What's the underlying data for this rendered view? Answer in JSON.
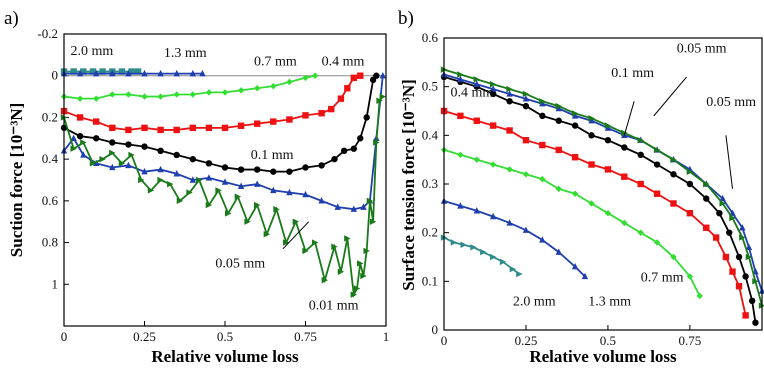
{
  "chart_data": [
    {
      "panel_label": "a)",
      "type": "line",
      "xlabel": "Relative volume loss",
      "ylabel": "Suction force [10⁻³N]",
      "xlim": [
        0,
        1
      ],
      "ylim": [
        -0.2,
        1.2
      ],
      "y_inverted": true,
      "xticks": [
        "0",
        "0.25",
        "0.5",
        "0.75",
        "1"
      ],
      "yticks": [
        "-0.2",
        "0",
        "0.2",
        "0.4",
        "0.6",
        "0.8",
        "1"
      ],
      "reference_line_y": 0,
      "series": [
        {
          "name": "2.0 mm",
          "color": "#2e8b8b",
          "marker": "square",
          "x": [
            0,
            0.03,
            0.06,
            0.09,
            0.12,
            0.15,
            0.18,
            0.21,
            0.23
          ],
          "y": [
            -0.02,
            -0.02,
            -0.02,
            -0.02,
            -0.02,
            -0.02,
            -0.02,
            -0.02,
            -0.02
          ]
        },
        {
          "name": "1.3 mm",
          "color": "#1f3fae",
          "marker": "triangle",
          "x": [
            0,
            0.05,
            0.1,
            0.15,
            0.2,
            0.25,
            0.3,
            0.35,
            0.4,
            0.43
          ],
          "y": [
            -0.01,
            -0.01,
            -0.01,
            -0.01,
            -0.01,
            -0.01,
            -0.01,
            -0.01,
            -0.01,
            -0.01
          ]
        },
        {
          "name": "0.7 mm",
          "color": "#33dd33",
          "marker": "diamond",
          "x": [
            0,
            0.05,
            0.1,
            0.15,
            0.2,
            0.25,
            0.3,
            0.35,
            0.4,
            0.45,
            0.5,
            0.55,
            0.6,
            0.65,
            0.7,
            0.75,
            0.78
          ],
          "y": [
            0.1,
            0.11,
            0.11,
            0.09,
            0.09,
            0.1,
            0.1,
            0.09,
            0.09,
            0.08,
            0.08,
            0.07,
            0.06,
            0.05,
            0.03,
            0.01,
            0.0
          ]
        },
        {
          "name": "0.4 mm",
          "color": "#ee1111",
          "marker": "square",
          "x": [
            0,
            0.05,
            0.1,
            0.15,
            0.2,
            0.25,
            0.3,
            0.35,
            0.4,
            0.45,
            0.5,
            0.55,
            0.6,
            0.65,
            0.7,
            0.75,
            0.8,
            0.83,
            0.86,
            0.88,
            0.9,
            0.92
          ],
          "y": [
            0.17,
            0.2,
            0.22,
            0.25,
            0.26,
            0.25,
            0.26,
            0.26,
            0.25,
            0.25,
            0.25,
            0.24,
            0.23,
            0.22,
            0.21,
            0.19,
            0.18,
            0.16,
            0.11,
            0.06,
            0.01,
            0.0
          ]
        },
        {
          "name": "0.1 mm",
          "color": "#000000",
          "marker": "circle",
          "x": [
            0,
            0.05,
            0.1,
            0.15,
            0.2,
            0.25,
            0.3,
            0.35,
            0.4,
            0.45,
            0.5,
            0.55,
            0.6,
            0.65,
            0.7,
            0.75,
            0.8,
            0.84,
            0.87,
            0.9,
            0.92,
            0.94,
            0.96,
            0.97
          ],
          "y": [
            0.25,
            0.29,
            0.3,
            0.32,
            0.33,
            0.34,
            0.36,
            0.38,
            0.4,
            0.42,
            0.44,
            0.45,
            0.45,
            0.46,
            0.46,
            0.44,
            0.43,
            0.4,
            0.36,
            0.35,
            0.3,
            0.2,
            0.02,
            0.0
          ]
        },
        {
          "name": "0.05 mm",
          "color": "#1f3fae",
          "marker": "triangle",
          "x": [
            0,
            0.03,
            0.06,
            0.1,
            0.15,
            0.2,
            0.25,
            0.3,
            0.35,
            0.4,
            0.45,
            0.5,
            0.55,
            0.6,
            0.65,
            0.7,
            0.75,
            0.8,
            0.85,
            0.9,
            0.93,
            0.95,
            0.97,
            0.99
          ],
          "y": [
            0.36,
            0.3,
            0.38,
            0.42,
            0.44,
            0.43,
            0.46,
            0.45,
            0.47,
            0.5,
            0.49,
            0.51,
            0.53,
            0.52,
            0.55,
            0.56,
            0.57,
            0.6,
            0.63,
            0.64,
            0.63,
            0.6,
            0.3,
            0.0
          ]
        },
        {
          "name": "0.01 mm",
          "color": "#1a7a1a",
          "marker": "arrow",
          "x": [
            0,
            0.03,
            0.06,
            0.09,
            0.12,
            0.15,
            0.18,
            0.21,
            0.24,
            0.27,
            0.3,
            0.33,
            0.36,
            0.39,
            0.42,
            0.45,
            0.48,
            0.51,
            0.54,
            0.57,
            0.6,
            0.63,
            0.66,
            0.69,
            0.72,
            0.75,
            0.78,
            0.81,
            0.84,
            0.86,
            0.88,
            0.9,
            0.91,
            0.92,
            0.93,
            0.94,
            0.95,
            0.96,
            0.97,
            0.98,
            0.99
          ],
          "y": [
            0.2,
            0.35,
            0.32,
            0.42,
            0.4,
            0.37,
            0.42,
            0.38,
            0.5,
            0.55,
            0.5,
            0.52,
            0.6,
            0.56,
            0.5,
            0.62,
            0.55,
            0.66,
            0.58,
            0.7,
            0.62,
            0.76,
            0.64,
            0.8,
            0.7,
            0.84,
            0.8,
            0.98,
            0.82,
            0.94,
            0.78,
            1.05,
            1.02,
            0.9,
            0.96,
            0.84,
            0.6,
            0.7,
            0.32,
            0.12,
            0.1
          ]
        }
      ],
      "annotations": [
        {
          "text": "2.0 mm",
          "x": 0.02,
          "y": -0.1
        },
        {
          "text": "1.3 mm",
          "x": 0.31,
          "y": -0.09
        },
        {
          "text": "0.7 mm",
          "x": 0.59,
          "y": -0.05
        },
        {
          "text": "0.4 mm",
          "x": 0.8,
          "y": -0.05
        },
        {
          "text": "0.1 mm",
          "x": 0.58,
          "y": 0.4
        },
        {
          "text": "0.05 mm",
          "x": 0.47,
          "y": 0.92
        },
        {
          "text": "0.01 mm",
          "x": 0.76,
          "y": 1.12
        }
      ]
    },
    {
      "panel_label": "b)",
      "type": "line",
      "xlabel": "Relative volume loss",
      "ylabel": "Surface tension force [10⁻³N]",
      "xlim": [
        0,
        0.97
      ],
      "ylim": [
        0,
        0.6
      ],
      "xticks": [
        "0",
        "0.25",
        "0.5",
        "0.75"
      ],
      "yticks": [
        "0",
        "0.1",
        "0.2",
        "0.3",
        "0.4",
        "0.5",
        "0.6"
      ],
      "series": [
        {
          "name": "2.0 mm",
          "color": "#2e8b8b",
          "marker": "arrow",
          "x": [
            0,
            0.03,
            0.06,
            0.09,
            0.12,
            0.15,
            0.18,
            0.21,
            0.23
          ],
          "y": [
            0.19,
            0.18,
            0.175,
            0.17,
            0.16,
            0.15,
            0.14,
            0.125,
            0.115
          ]
        },
        {
          "name": "1.3 mm",
          "color": "#1f3fae",
          "marker": "triangle",
          "x": [
            0,
            0.05,
            0.1,
            0.15,
            0.2,
            0.25,
            0.3,
            0.35,
            0.4,
            0.43
          ],
          "y": [
            0.265,
            0.255,
            0.245,
            0.233,
            0.22,
            0.205,
            0.185,
            0.16,
            0.13,
            0.11
          ]
        },
        {
          "name": "0.7 mm",
          "color": "#33dd33",
          "marker": "diamond",
          "x": [
            0,
            0.05,
            0.1,
            0.15,
            0.2,
            0.25,
            0.3,
            0.35,
            0.4,
            0.45,
            0.5,
            0.55,
            0.6,
            0.65,
            0.7,
            0.75,
            0.78
          ],
          "y": [
            0.37,
            0.36,
            0.35,
            0.34,
            0.33,
            0.32,
            0.31,
            0.29,
            0.28,
            0.26,
            0.24,
            0.22,
            0.2,
            0.18,
            0.15,
            0.11,
            0.07
          ]
        },
        {
          "name": "0.4 mm",
          "color": "#ee1111",
          "marker": "square",
          "x": [
            0,
            0.05,
            0.1,
            0.15,
            0.2,
            0.25,
            0.3,
            0.35,
            0.4,
            0.45,
            0.5,
            0.55,
            0.6,
            0.65,
            0.7,
            0.75,
            0.8,
            0.83,
            0.86,
            0.88,
            0.9,
            0.92
          ],
          "y": [
            0.45,
            0.44,
            0.43,
            0.42,
            0.41,
            0.39,
            0.38,
            0.37,
            0.355,
            0.34,
            0.33,
            0.315,
            0.3,
            0.28,
            0.26,
            0.24,
            0.21,
            0.19,
            0.15,
            0.12,
            0.09,
            0.03
          ]
        },
        {
          "name": "0.1 mm",
          "color": "#000000",
          "marker": "circle",
          "x": [
            0,
            0.05,
            0.1,
            0.15,
            0.2,
            0.25,
            0.3,
            0.35,
            0.4,
            0.45,
            0.5,
            0.55,
            0.6,
            0.65,
            0.7,
            0.75,
            0.8,
            0.84,
            0.87,
            0.9,
            0.92,
            0.94,
            0.95
          ],
          "y": [
            0.52,
            0.51,
            0.5,
            0.485,
            0.47,
            0.46,
            0.44,
            0.43,
            0.42,
            0.4,
            0.39,
            0.375,
            0.36,
            0.34,
            0.32,
            0.3,
            0.27,
            0.24,
            0.2,
            0.15,
            0.11,
            0.06,
            0.015
          ]
        },
        {
          "name": "0.05 mm",
          "color": "#1f3fae",
          "marker": "triangle",
          "x": [
            0,
            0.05,
            0.1,
            0.15,
            0.2,
            0.25,
            0.3,
            0.35,
            0.4,
            0.45,
            0.5,
            0.55,
            0.6,
            0.65,
            0.7,
            0.75,
            0.8,
            0.85,
            0.88,
            0.91,
            0.93,
            0.95,
            0.97
          ],
          "y": [
            0.525,
            0.515,
            0.505,
            0.495,
            0.485,
            0.475,
            0.465,
            0.455,
            0.44,
            0.43,
            0.415,
            0.4,
            0.39,
            0.37,
            0.35,
            0.33,
            0.3,
            0.27,
            0.24,
            0.21,
            0.17,
            0.12,
            0.08
          ]
        },
        {
          "name": "0.01 mm",
          "color": "#1a7a1a",
          "marker": "arrow",
          "x": [
            0,
            0.05,
            0.1,
            0.15,
            0.2,
            0.25,
            0.3,
            0.35,
            0.4,
            0.45,
            0.5,
            0.55,
            0.6,
            0.65,
            0.7,
            0.75,
            0.8,
            0.85,
            0.88,
            0.91,
            0.93,
            0.95,
            0.97
          ],
          "y": [
            0.535,
            0.525,
            0.515,
            0.505,
            0.495,
            0.485,
            0.47,
            0.46,
            0.445,
            0.435,
            0.42,
            0.405,
            0.39,
            0.37,
            0.35,
            0.325,
            0.3,
            0.26,
            0.23,
            0.19,
            0.15,
            0.1,
            0.05
          ]
        }
      ],
      "annotations": [
        {
          "text": "0.4 mm",
          "x": 0.02,
          "y": 0.48
        },
        {
          "text": "0.1 mm",
          "x": 0.51,
          "y": 0.52
        },
        {
          "text": "0.05 mm",
          "x": 0.71,
          "y": 0.57
        },
        {
          "text": "0.05 mm",
          "x": 0.8,
          "y": 0.46
        },
        {
          "text": "0.7 mm",
          "x": 0.6,
          "y": 0.1
        },
        {
          "text": "2.0 mm",
          "x": 0.21,
          "y": 0.05
        },
        {
          "text": "1.3 mm",
          "x": 0.44,
          "y": 0.05
        }
      ]
    }
  ]
}
